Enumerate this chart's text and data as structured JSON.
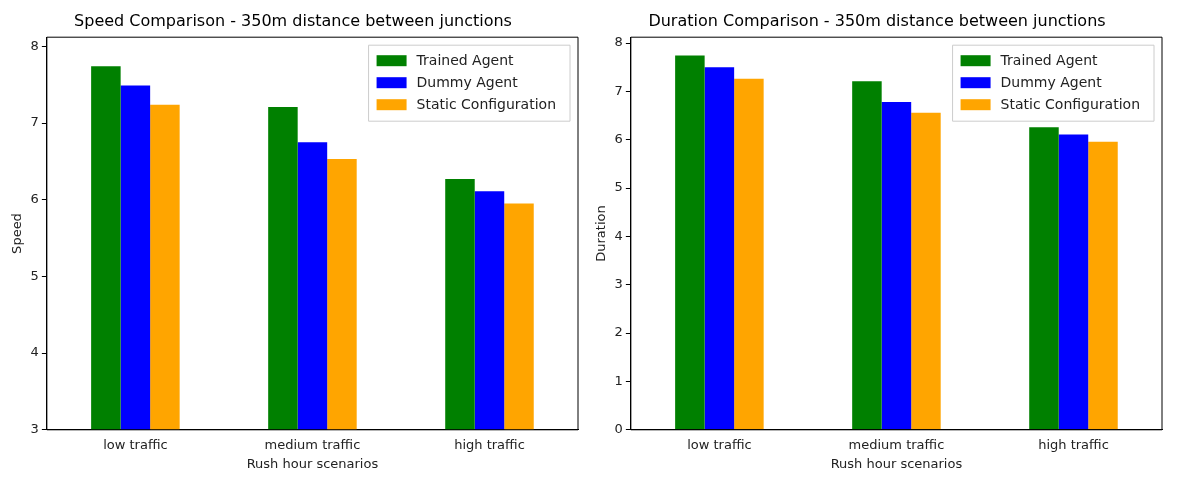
{
  "chart_data": [
    {
      "type": "bar",
      "title": "Speed Comparison - 350m distance between junctions",
      "xlabel": "Rush hour scenarios",
      "ylabel": "Speed",
      "categories": [
        "low traffic",
        "medium traffic",
        "high traffic"
      ],
      "series": [
        {
          "name": "Trained Agent",
          "color": "#008000",
          "values": [
            7.74,
            7.21,
            6.27
          ]
        },
        {
          "name": "Dummy Agent",
          "color": "#0000ff",
          "values": [
            7.49,
            6.75,
            6.11
          ]
        },
        {
          "name": "Static Configuration",
          "color": "#ffa500",
          "values": [
            7.24,
            6.53,
            5.95
          ]
        }
      ],
      "ylim": [
        3,
        8.12
      ],
      "yticks": [
        3,
        4,
        5,
        6,
        7,
        8
      ],
      "grid": false,
      "legend": "top right"
    },
    {
      "type": "bar",
      "title": "Duration Comparison - 350m distance between junctions",
      "xlabel": "Rush hour scenarios",
      "ylabel": "Duration",
      "categories": [
        "low traffic",
        "medium traffic",
        "high traffic"
      ],
      "series": [
        {
          "name": "Trained Agent",
          "color": "#008000",
          "values": [
            7.74,
            7.21,
            6.26
          ]
        },
        {
          "name": "Dummy Agent",
          "color": "#0000ff",
          "values": [
            7.5,
            6.78,
            6.11
          ]
        },
        {
          "name": "Static Configuration",
          "color": "#ffa500",
          "values": [
            7.26,
            6.56,
            5.96
          ]
        }
      ],
      "ylim": [
        0,
        8.12
      ],
      "yticks": [
        0,
        1,
        2,
        3,
        4,
        5,
        6,
        7,
        8
      ],
      "grid": false,
      "legend": "top right"
    }
  ]
}
